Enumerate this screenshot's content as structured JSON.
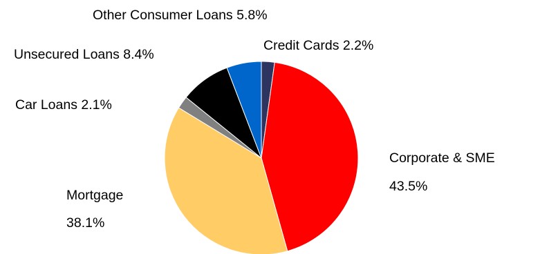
{
  "chart_data": {
    "type": "pie",
    "start_angle_deg": 0,
    "direction": "clockwise",
    "slices": [
      {
        "name": "Credit Cards",
        "value": 2.2,
        "value_label": "2.2%",
        "color": "#2E3460"
      },
      {
        "name": "Corporate & SME",
        "value": 43.5,
        "value_label": "43.5%",
        "color": "#FF0000"
      },
      {
        "name": "Mortgage",
        "value": 38.1,
        "value_label": "38.1%",
        "color": "#FFCC66"
      },
      {
        "name": "Car Loans",
        "value": 2.1,
        "value_label": "2.1%",
        "color": "#808080"
      },
      {
        "name": "Unsecured Loans",
        "value": 8.4,
        "value_label": "8.4%",
        "color": "#000000"
      },
      {
        "name": "Other Consumer Loans",
        "value": 5.8,
        "value_label": "5.8%",
        "color": "#0066CC"
      }
    ],
    "labels_single_line": [
      "Credit Cards 2.2%",
      "Car Loans 2.1%",
      "Unsecured Loans 8.4%",
      "Other Consumer Loans 5.8%"
    ],
    "labels_two_line": {
      "corporate": {
        "line1": "Corporate & SME",
        "line2": "43.5%"
      },
      "mortgage": {
        "line1": "Mortgage",
        "line2": "38.1%"
      }
    }
  }
}
